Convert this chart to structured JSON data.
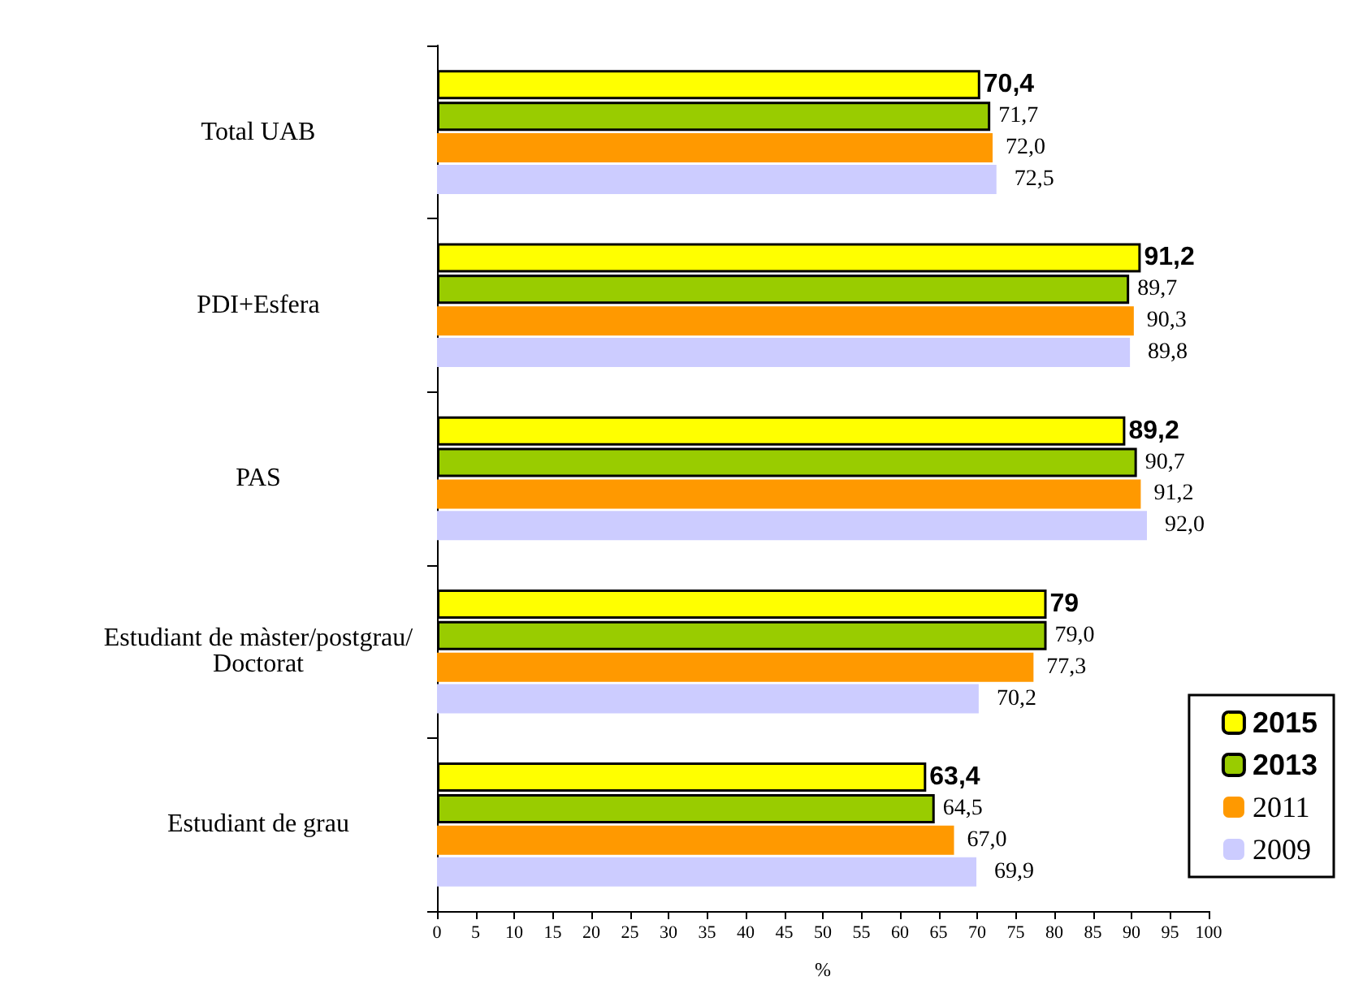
{
  "chart_data": {
    "type": "bar",
    "orientation": "horizontal",
    "xlabel": "%",
    "categories": [
      "Total UAB",
      "PDI+Esfera",
      "PAS",
      "Estudiant de màster/postgrau/Doctorat",
      "Estudiant de grau"
    ],
    "series": [
      {
        "name": "2015",
        "color": "#ffff00",
        "values": [
          70.4,
          91.2,
          89.2,
          79,
          63.4
        ],
        "value_labels": [
          "70,4",
          "91,2",
          "89,2",
          "79",
          "63,4"
        ]
      },
      {
        "name": "2013",
        "color": "#99cc00",
        "values": [
          71.7,
          89.7,
          90.7,
          79.0,
          64.5
        ],
        "value_labels": [
          "71,7",
          "89,7",
          "90,7",
          "79,0",
          "64,5"
        ]
      },
      {
        "name": "2011",
        "color": "#ff9900",
        "values": [
          72.0,
          90.3,
          91.2,
          77.3,
          67.0
        ],
        "value_labels": [
          "72,0",
          "90,3",
          "91,2",
          "77,3",
          "67,0"
        ]
      },
      {
        "name": "2009",
        "color": "#ccccff",
        "values": [
          72.5,
          89.8,
          92.0,
          70.2,
          69.9
        ],
        "value_labels": [
          "72,5",
          "89,8",
          "92,0",
          "70,2",
          "69,9"
        ]
      }
    ],
    "xlim": [
      0,
      100
    ],
    "xticks": [
      0,
      5,
      10,
      15,
      20,
      25,
      30,
      35,
      40,
      45,
      50,
      55,
      60,
      65,
      70,
      75,
      80,
      85,
      90,
      95,
      100
    ],
    "grid": false,
    "legend": "bottom right"
  }
}
